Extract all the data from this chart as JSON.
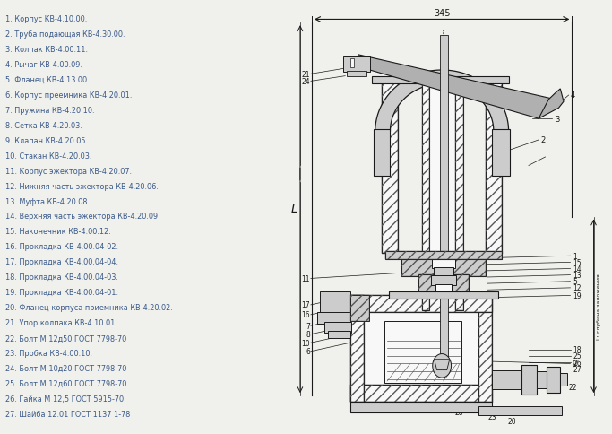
{
  "bg_color": "#f0f0ec",
  "text_color": "#3a5a8a",
  "line_color": "#1a1a1a",
  "items": [
    "1. Корпус КВ-4.10.00.",
    "2. Труба подающая КВ-4.30.00.",
    "3. Колпак КВ-4.00.11.",
    "4. Рычаг КВ-4.00.09.",
    "5. Фланец КВ-4.13.00.",
    "6. Корпус преемника КВ-4.20.01.",
    "7. Пружина КВ-4.20.10.",
    "8. Сетка КВ-4.20.03.",
    "9. Клапан КВ-4.20.05.",
    "10. Стакан КВ-4.20.03.",
    "11. Корпус эжектора КВ-4.20.07.",
    "12. Нижняя часть эжектора КВ-4.20.06.",
    "13. Муфта КВ-4.20.08.",
    "14. Верхняя часть эжектора КВ-4.20.09.",
    "15. Наконечник КВ-4.00.12.",
    "16. Прокладка КВ-4.00.04-02.",
    "17. Прокладка КВ-4.00.04-04.",
    "18. Прокладка КВ-4.00.04-03.",
    "19. Прокладка КВ-4.00.04-01.",
    "20. Фланец корпуса приемника КВ-4.20.02.",
    "21. Упор колпака КВ-4.10.01.",
    "22. Болт М 12д50 ГОСТ 7798-70",
    "23. Пробка КВ-4.00.10.",
    "24. Болт М 10д20 ГОСТ 7798-70",
    "25. Болт М 12д60 ГОСТ 7798-70",
    "26. Гайка М 12,5 ГОСТ 5915-70",
    "27. Шайба 12.01 ГОСТ 1137 1-78"
  ],
  "dim_text": "345",
  "label_L": "L",
  "label_L1": "L₁ глубина заложения"
}
